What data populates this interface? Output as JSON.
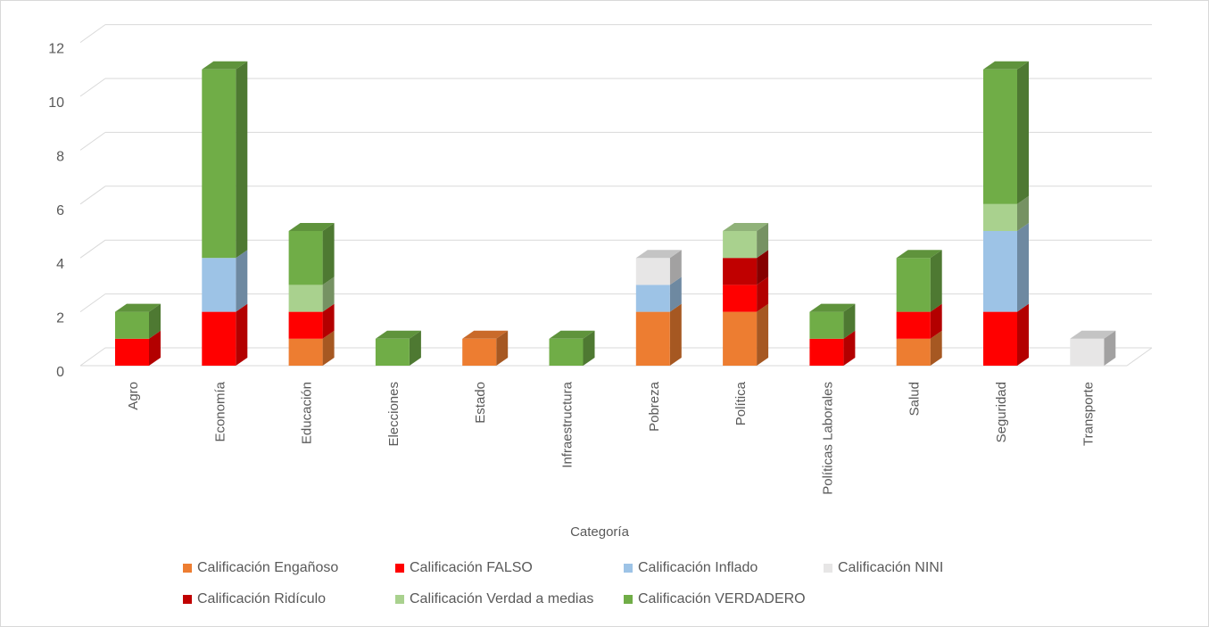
{
  "chart_data": {
    "type": "bar",
    "stacked": true,
    "style": "3d-column",
    "title": "",
    "xlabel": "Categoría",
    "ylabel": "",
    "ylim": [
      0,
      12
    ],
    "yticks": [
      0,
      2,
      4,
      6,
      8,
      10,
      12
    ],
    "grid": true,
    "legend_position": "bottom",
    "categories": [
      "Agro",
      "Economía",
      "Educación",
      "Elecciones",
      "Estado",
      "Infraestructura",
      "Pobreza",
      "Política",
      "Políticas Laborales",
      "Salud",
      "Seguridad",
      "Transporte"
    ],
    "series": [
      {
        "name": "Calificación Engañoso",
        "color": "#ed7d31",
        "values": [
          0,
          0,
          1,
          0,
          1,
          0,
          2,
          2,
          0,
          1,
          0,
          0
        ]
      },
      {
        "name": "Calificación FALSO",
        "color": "#ff0000",
        "values": [
          1,
          2,
          1,
          0,
          0,
          0,
          0,
          1,
          1,
          1,
          2,
          0
        ]
      },
      {
        "name": "Calificación Inflado",
        "color": "#9dc3e6",
        "values": [
          0,
          2,
          0,
          0,
          0,
          0,
          1,
          0,
          0,
          0,
          3,
          0
        ]
      },
      {
        "name": "Calificación NINI",
        "color": "#e7e6e6",
        "values": [
          0,
          0,
          0,
          0,
          0,
          0,
          1,
          0,
          0,
          0,
          0,
          1
        ]
      },
      {
        "name": "Calificación Ridículo",
        "color": "#c00000",
        "values": [
          0,
          0,
          0,
          0,
          0,
          0,
          0,
          1,
          0,
          0,
          0,
          0
        ]
      },
      {
        "name": "Calificación Verdad a medias",
        "color": "#a9d18e",
        "values": [
          0,
          0,
          1,
          0,
          0,
          0,
          0,
          1,
          0,
          0,
          1,
          0
        ]
      },
      {
        "name": "Calificación VERDADERO",
        "color": "#70ad47",
        "values": [
          1,
          7,
          2,
          1,
          0,
          1,
          0,
          0,
          1,
          2,
          5,
          0
        ]
      }
    ]
  }
}
